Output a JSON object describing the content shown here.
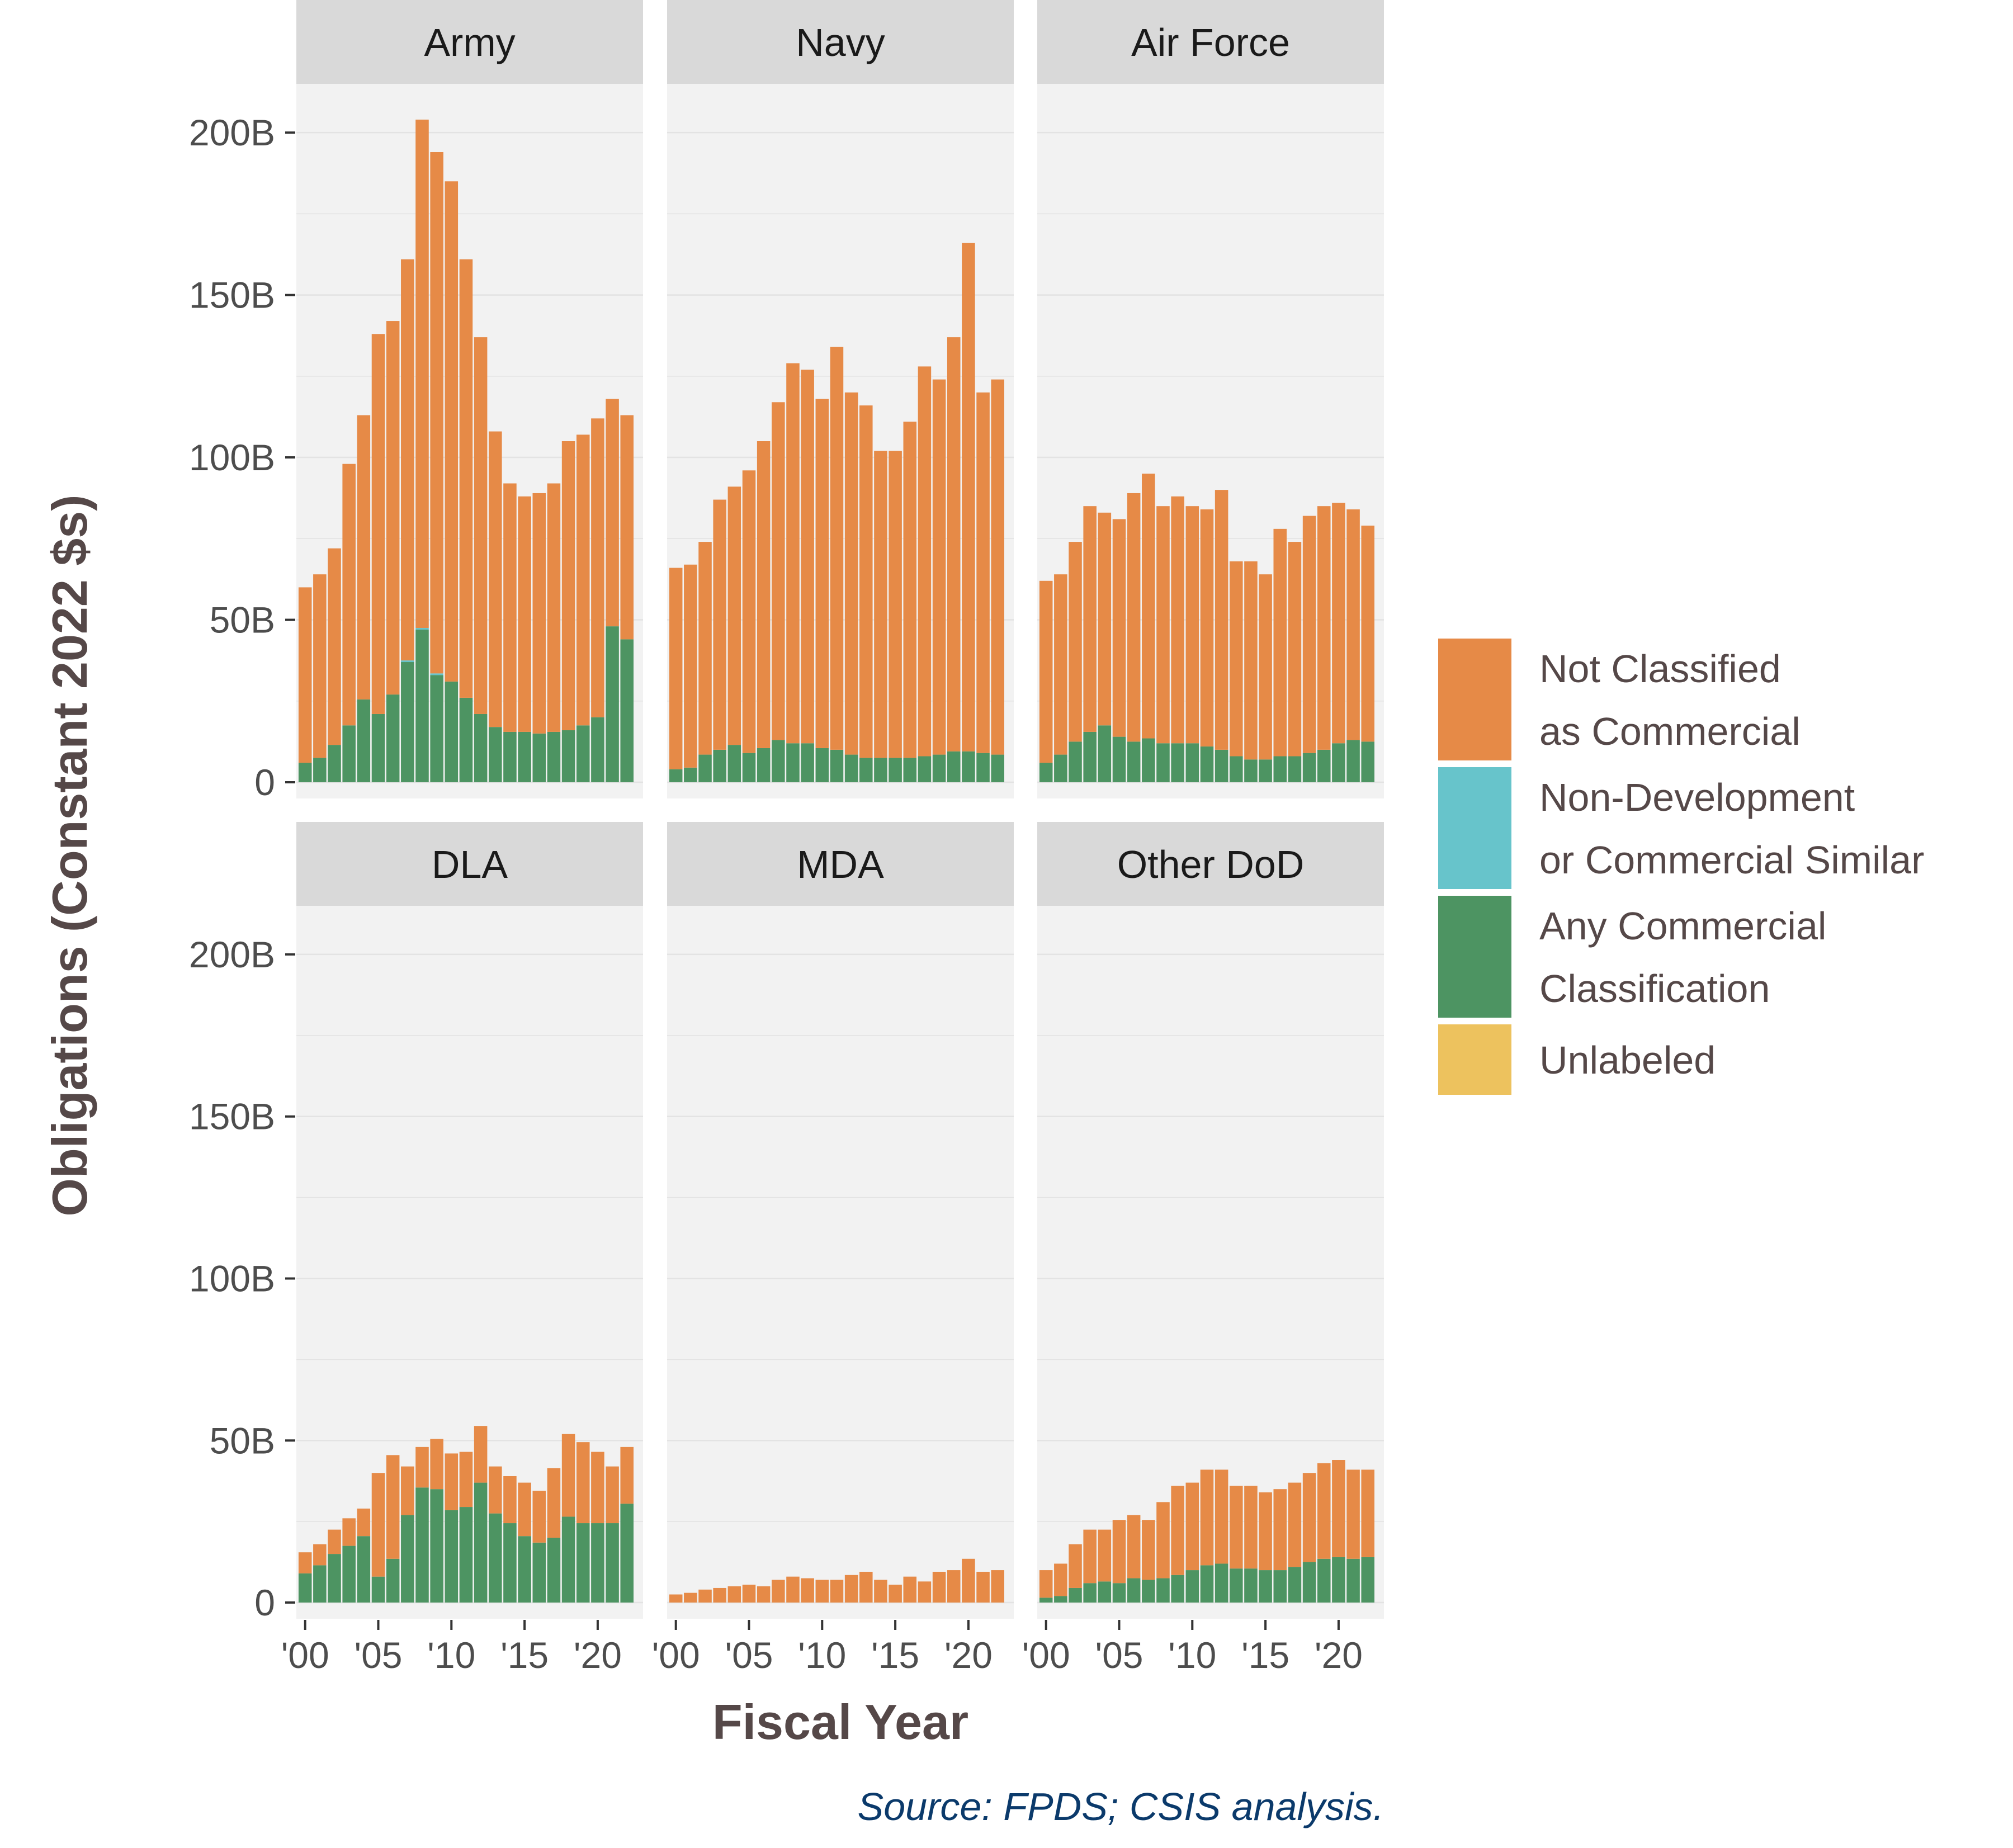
{
  "chart_data": {
    "type": "bar",
    "stacked": true,
    "xlabel": "Fiscal Year",
    "ylabel": "Obligations (Constant 2022 $s)",
    "source": "Source: FPDS; CSIS analysis.",
    "years": [
      2000,
      2001,
      2002,
      2003,
      2004,
      2005,
      2006,
      2007,
      2008,
      2009,
      2010,
      2011,
      2012,
      2013,
      2014,
      2015,
      2016,
      2017,
      2018,
      2019,
      2020,
      2021,
      2022
    ],
    "x_ticks": [
      "'00",
      "'05",
      "'10",
      "'15",
      "'20"
    ],
    "x_tick_years": [
      2000,
      2005,
      2010,
      2015,
      2020
    ],
    "y_ticks": [
      "0",
      "50B",
      "100B",
      "150B",
      "200B"
    ],
    "y_tick_values": [
      0,
      50,
      100,
      150,
      200
    ],
    "ylim": [
      -5,
      215
    ],
    "grid": true,
    "legend_position": "right",
    "legend": [
      {
        "key": "not_classified",
        "label_lines": [
          "Not Classified",
          "as Commercial"
        ],
        "color": "#E68A47"
      },
      {
        "key": "non_development",
        "label_lines": [
          "Non-Development",
          "or Commercial Similar"
        ],
        "color": "#67C4CB"
      },
      {
        "key": "any_commercial",
        "label_lines": [
          "Any Commercial",
          "Classification"
        ],
        "color": "#4D9462"
      },
      {
        "key": "unlabeled",
        "label_lines": [
          "Unlabeled"
        ],
        "color": "#EDC25E"
      }
    ],
    "panels": [
      {
        "name": "Army",
        "totals": [
          60,
          64,
          72,
          98,
          113,
          138,
          142,
          161,
          204,
          194,
          185,
          161,
          137,
          108,
          92,
          88,
          89,
          92,
          105,
          107,
          112,
          118,
          113
        ],
        "any_commercial": [
          6,
          7.5,
          11.5,
          17.5,
          25.5,
          21,
          27,
          37,
          47,
          33,
          31,
          26,
          21,
          17,
          15.5,
          15.5,
          15,
          15.5,
          16,
          17.5,
          20,
          48,
          44
        ],
        "non_development": [
          0,
          0,
          0,
          0,
          0,
          0,
          0,
          0.5,
          0.5,
          0.5,
          0,
          0,
          0,
          0,
          0,
          0,
          0,
          0,
          0,
          0,
          0,
          0,
          0
        ]
      },
      {
        "name": "Navy",
        "totals": [
          66,
          67,
          74,
          87,
          91,
          96,
          105,
          117,
          129,
          127,
          118,
          134,
          120,
          116,
          102,
          102,
          111,
          128,
          124,
          137,
          166,
          120,
          124
        ],
        "any_commercial": [
          4,
          4.5,
          8.5,
          10,
          11.5,
          9,
          10.5,
          13,
          12,
          12,
          10.5,
          10,
          8.5,
          7.5,
          7.5,
          7.5,
          7.5,
          8,
          8.5,
          9.5,
          9.5,
          9,
          8.5
        ],
        "non_development": [
          0,
          0,
          0,
          0,
          0,
          0,
          0,
          0,
          0,
          0,
          0,
          0,
          0,
          0,
          0,
          0,
          0,
          0,
          0,
          0,
          0,
          0,
          0
        ]
      },
      {
        "name": "Air Force",
        "totals": [
          62,
          64,
          74,
          85,
          83,
          81,
          89,
          95,
          85,
          88,
          85,
          84,
          90,
          68,
          68,
          64,
          78,
          74,
          82,
          85,
          86,
          84,
          79
        ],
        "any_commercial": [
          6,
          8.5,
          12.5,
          15.5,
          17.5,
          14,
          12.5,
          13.5,
          12,
          12,
          12,
          11,
          10,
          8,
          7,
          7,
          8,
          8,
          9,
          10,
          12,
          13,
          12.5
        ],
        "non_development": [
          0,
          0,
          0,
          0,
          0,
          0,
          0,
          0,
          0,
          0,
          0,
          0,
          0,
          0,
          0,
          0,
          0,
          0,
          0,
          0,
          0,
          0,
          0
        ]
      },
      {
        "name": "DLA",
        "totals": [
          15.5,
          18,
          22.5,
          26,
          29,
          40,
          45.5,
          42,
          48,
          50.5,
          46,
          46.5,
          54.5,
          42,
          39,
          37,
          34.5,
          41.5,
          52,
          49.5,
          46.5,
          42,
          48
        ],
        "any_commercial": [
          9,
          11.5,
          15,
          17.5,
          20.5,
          8,
          13.5,
          27,
          35.5,
          35,
          28.5,
          29.5,
          37,
          27.5,
          24.5,
          20.5,
          18.5,
          20,
          26.5,
          24.5,
          24.5,
          24.5,
          30.5
        ],
        "non_development": [
          0,
          0,
          0,
          0,
          0,
          0,
          0,
          0,
          0,
          0,
          0,
          0,
          0,
          0,
          0,
          0,
          0,
          0,
          0,
          0,
          0,
          0,
          0
        ]
      },
      {
        "name": "MDA",
        "totals": [
          2.5,
          3,
          4,
          4.5,
          5,
          5.5,
          5,
          7,
          8,
          7.5,
          7,
          7,
          8.5,
          9.5,
          7,
          5.5,
          8,
          6.5,
          9.5,
          10,
          13.5,
          9.5,
          10
        ],
        "any_commercial": [
          0,
          0,
          0,
          0,
          0,
          0,
          0,
          0,
          0,
          0,
          0,
          0,
          0,
          0,
          0,
          0,
          0,
          0,
          0,
          0,
          0,
          0,
          0
        ],
        "non_development": [
          0,
          0,
          0,
          0,
          0,
          0,
          0,
          0,
          0,
          0,
          0,
          0,
          0,
          0,
          0,
          0,
          0,
          0,
          0,
          0,
          0,
          0,
          0
        ]
      },
      {
        "name": "Other DoD",
        "totals": [
          10,
          12,
          18,
          22.5,
          22.5,
          25.5,
          27,
          25.5,
          31,
          36,
          37,
          41,
          41,
          36,
          36,
          34,
          35,
          37,
          40,
          43,
          44,
          41,
          41
        ],
        "any_commercial": [
          1.5,
          2,
          4.5,
          6,
          6.5,
          6,
          7.5,
          7,
          7.5,
          8.5,
          10,
          11.5,
          12,
          10.5,
          10.5,
          10,
          10,
          11,
          12.5,
          13.5,
          14,
          13.5,
          14
        ],
        "non_development": [
          0,
          0,
          0,
          0,
          0,
          0,
          0,
          0,
          0,
          0,
          0,
          0,
          0,
          0,
          0,
          0,
          0,
          0,
          0,
          0,
          0,
          0,
          0
        ]
      }
    ]
  }
}
